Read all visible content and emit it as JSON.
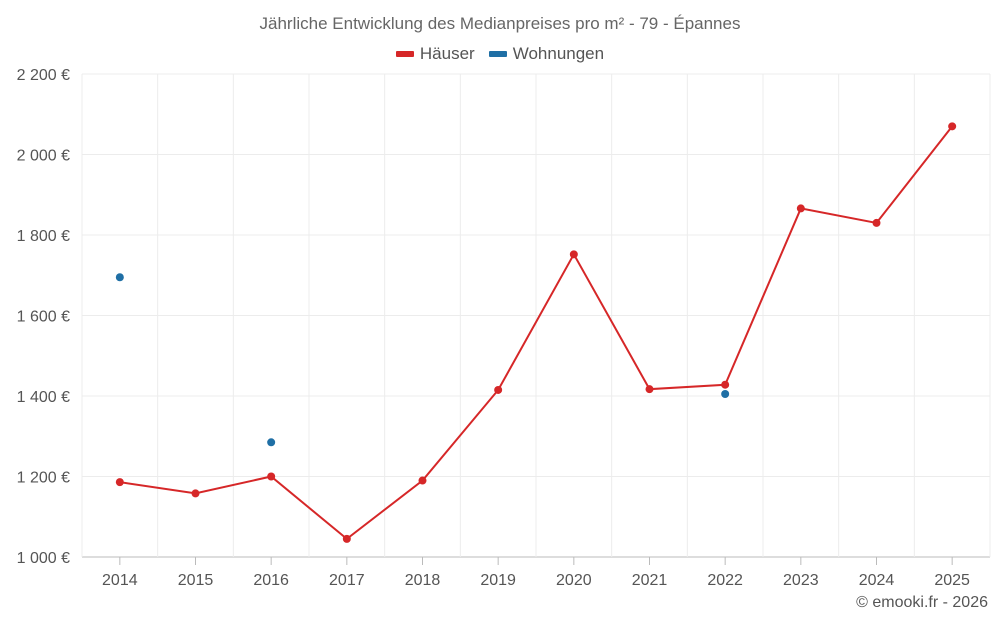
{
  "chart_data": {
    "type": "line",
    "title": "Jährliche Entwicklung des Medianpreises pro m² - 79 - Épannes",
    "x": [
      "2014",
      "2015",
      "2016",
      "2017",
      "2018",
      "2019",
      "2020",
      "2021",
      "2022",
      "2023",
      "2024",
      "2025"
    ],
    "ylim": [
      1000,
      2200
    ],
    "yticks": [
      1000,
      1200,
      1400,
      1600,
      1800,
      2000,
      2200
    ],
    "ytick_labels": [
      "1 000 €",
      "1 200 €",
      "1 400 €",
      "1 600 €",
      "1 800 €",
      "2 000 €",
      "2 200 €"
    ],
    "grid": true,
    "legend_position": "top-center",
    "series": [
      {
        "name": "Häuser",
        "color": "#d62728",
        "line": true,
        "values": [
          1186,
          1158,
          1200,
          1045,
          1190,
          1415,
          1752,
          1417,
          1428,
          1866,
          1830,
          2070
        ]
      },
      {
        "name": "Wohnungen",
        "color": "#1f6fa5",
        "line": false,
        "values": [
          1695,
          null,
          1285,
          null,
          null,
          null,
          null,
          null,
          1405,
          null,
          null,
          null
        ]
      }
    ]
  },
  "credit": "© emooki.fr - 2026"
}
